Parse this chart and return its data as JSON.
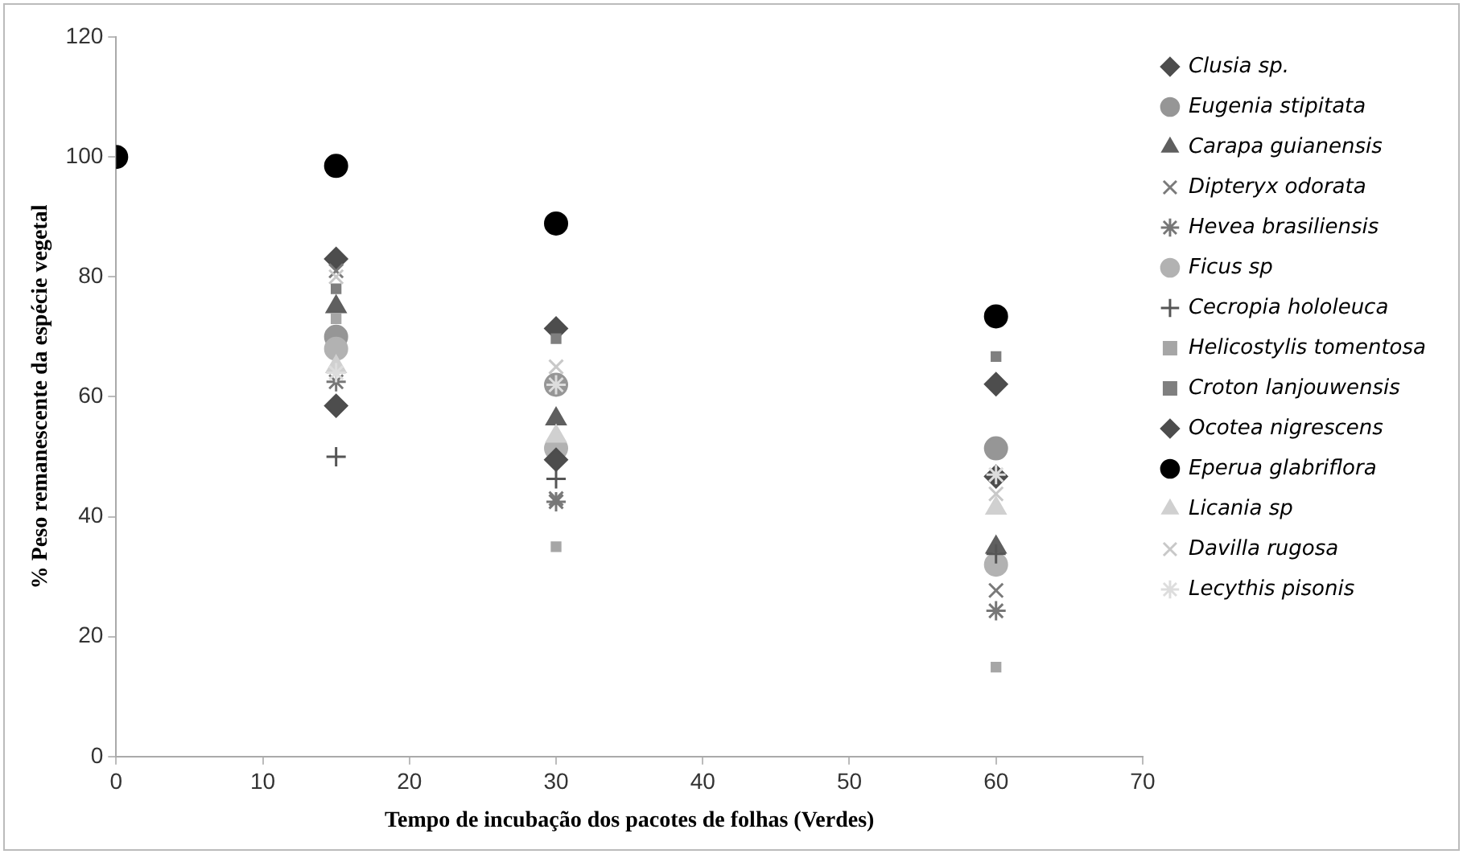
{
  "chart_data": {
    "type": "scatter",
    "xlabel": "Tempo de incubação dos pacotes de folhas (Verdes)",
    "ylabel": "% Peso remanescente da espécie vegetal",
    "x": [
      0,
      15,
      30,
      60
    ],
    "xlim": [
      0,
      70
    ],
    "xticks": [
      0,
      10,
      20,
      30,
      40,
      50,
      60,
      70
    ],
    "ylim": [
      0,
      120
    ],
    "yticks": [
      0,
      20,
      40,
      60,
      80,
      100,
      120
    ],
    "grid": false,
    "legend": "right",
    "series": [
      {
        "name": "Clusia sp.",
        "color": "#4d4d4d",
        "marker": "diamond",
        "values": [
          null,
          83,
          71.4,
          46.7
        ]
      },
      {
        "name": "Eugenia stipitata",
        "color": "#969696",
        "marker": "circle",
        "values": [
          null,
          70,
          62,
          51.4
        ]
      },
      {
        "name": "Carapa guianensis",
        "color": "#5f5f5f",
        "marker": "triangle",
        "values": [
          null,
          75,
          56.3,
          34.9
        ]
      },
      {
        "name": "Dipteryx odorata",
        "color": "#7a7a7a",
        "marker": "x",
        "values": [
          null,
          81,
          43,
          27.7
        ]
      },
      {
        "name": "Hevea brasiliensis",
        "color": "#777777",
        "marker": "cross",
        "values": [
          null,
          62.5,
          42.5,
          24.3
        ]
      },
      {
        "name": "Ficus sp",
        "color": "#b2b2b2",
        "marker": "circle",
        "values": [
          null,
          68,
          51.4,
          32
        ]
      },
      {
        "name": "Cecropia hololeuca",
        "color": "#555555",
        "marker": "plus",
        "values": [
          null,
          50,
          46.3,
          33.8
        ]
      },
      {
        "name": "Helicostylis tomentosa",
        "color": "#a6a6a6",
        "marker": "square",
        "values": [
          null,
          73,
          35,
          14.9
        ]
      },
      {
        "name": "Croton lanjouwensis",
        "color": "#7f7f7f",
        "marker": "square",
        "values": [
          null,
          78,
          69.7,
          66.7
        ]
      },
      {
        "name": "Ocotea nigrescens",
        "color": "#4d4d4d",
        "marker": "diamond",
        "values": [
          null,
          58.5,
          49.5,
          62.1
        ]
      },
      {
        "name": "Eperua glabriflora",
        "color": "#000000",
        "marker": "circle",
        "values": [
          100,
          98.5,
          88.9,
          73.4
        ]
      },
      {
        "name": "Licania sp",
        "color": "#d0d0d0",
        "marker": "triangle",
        "values": [
          null,
          65,
          53.4,
          41.4
        ]
      },
      {
        "name": "Davilla rugosa",
        "color": "#c8c8c8",
        "marker": "x",
        "values": [
          null,
          80,
          65,
          43.8
        ]
      },
      {
        "name": "Lecythis pisonis",
        "color": "#dddddd",
        "marker": "cross",
        "values": [
          null,
          64,
          62,
          47
        ]
      }
    ]
  }
}
